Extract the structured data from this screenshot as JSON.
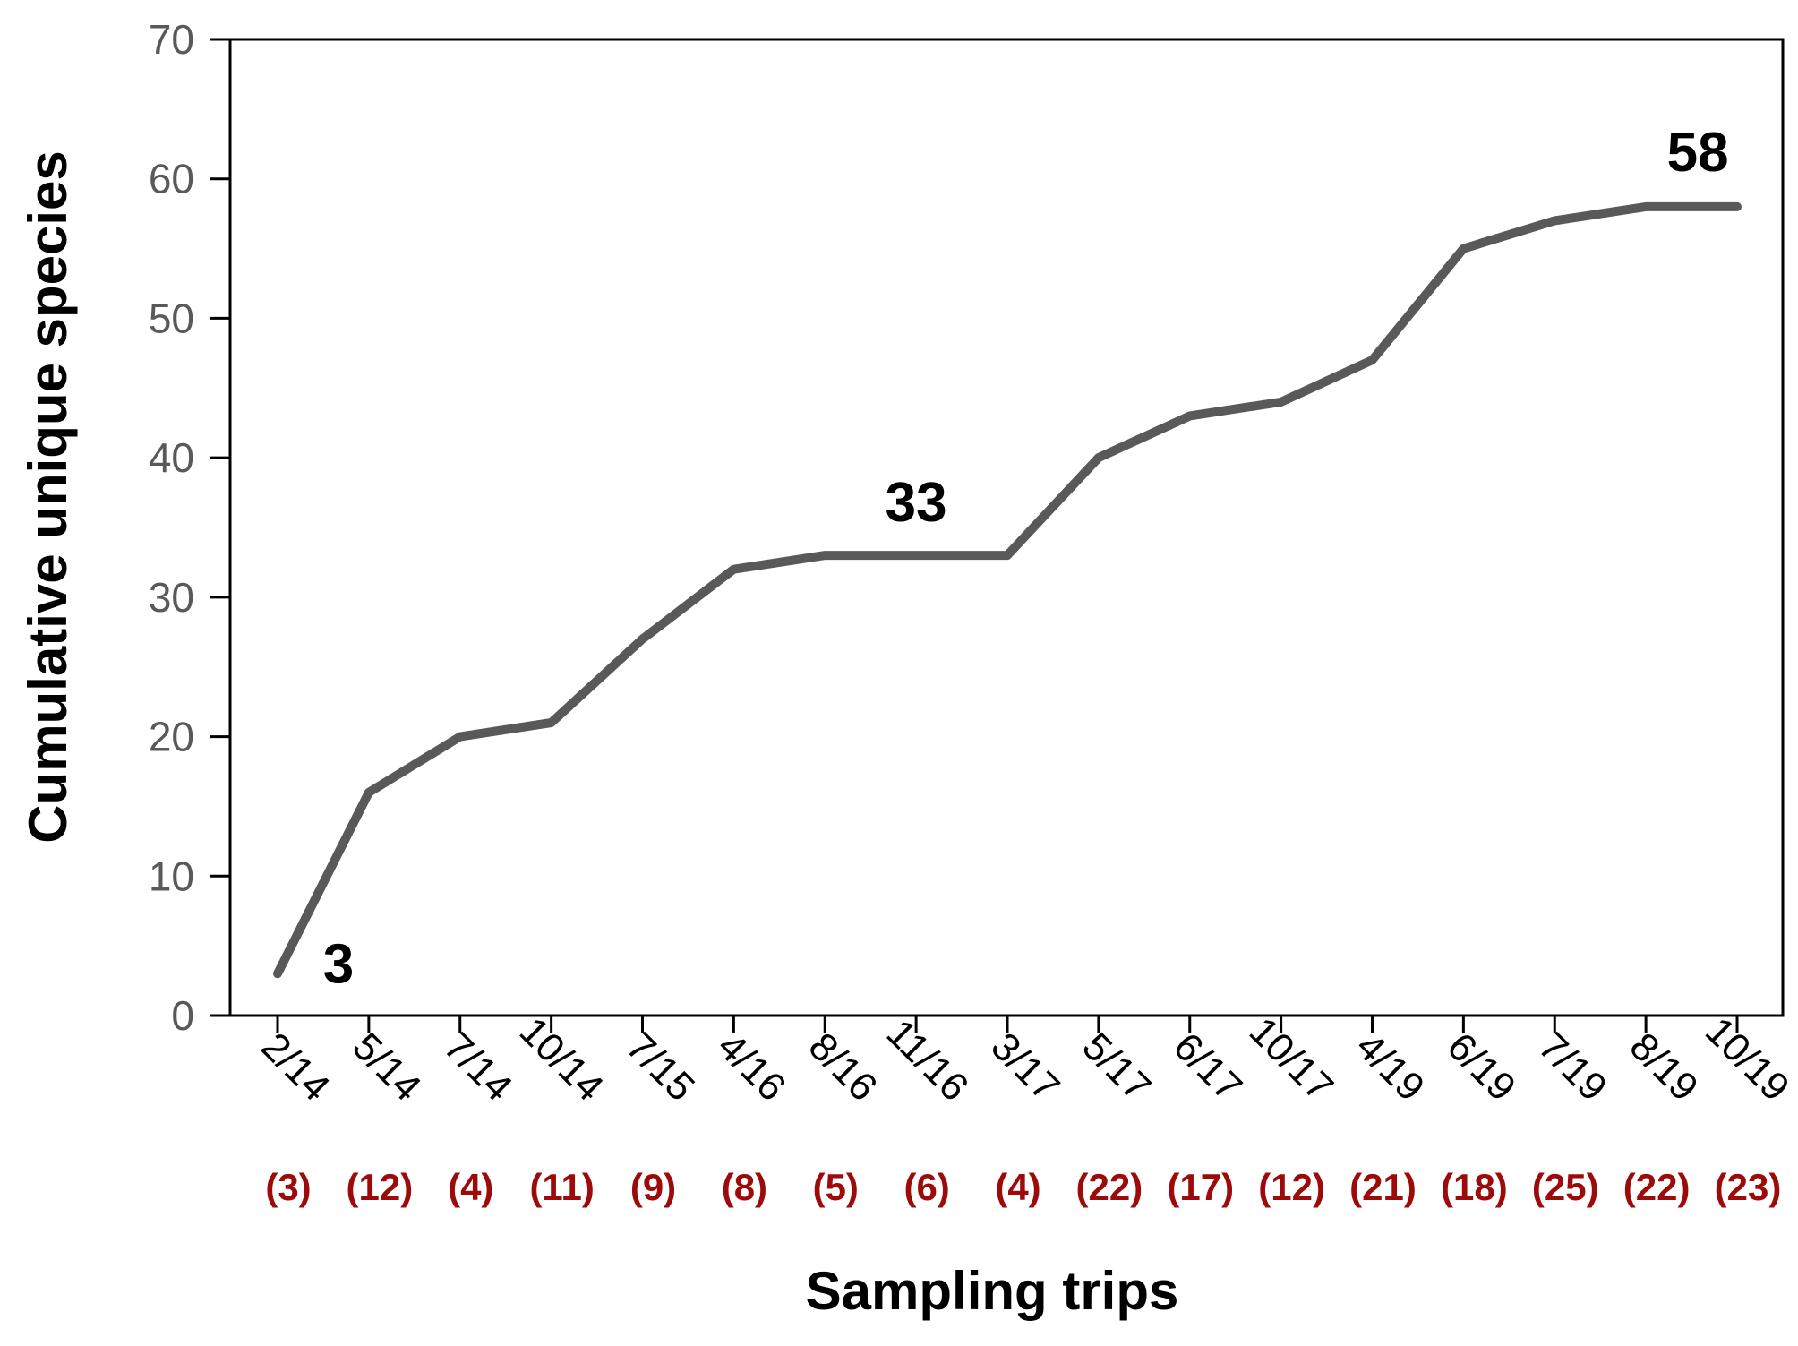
{
  "chart_data": {
    "type": "line",
    "xlabel": "Sampling trips",
    "ylabel": "Cumulative unique species",
    "ylim": [
      0,
      70
    ],
    "yticks": [
      0,
      10,
      20,
      30,
      40,
      50,
      60,
      70
    ],
    "grid": false,
    "legend": "none",
    "categories": [
      "2/14",
      "5/14",
      "7/14",
      "10/14",
      "7/15",
      "4/16",
      "8/16",
      "11/16",
      "3/17",
      "5/17",
      "6/17",
      "10/17",
      "4/19",
      "6/19",
      "7/19",
      "8/19",
      "10/19"
    ],
    "trip_counts": [
      "(3)",
      "(12)",
      "(4)",
      "(11)",
      "(9)",
      "(8)",
      "(5)",
      "(6)",
      "(4)",
      "(22)",
      "(17)",
      "(12)",
      "(21)",
      "(18)",
      "(25)",
      "(22)",
      "(23)"
    ],
    "series": [
      {
        "values": [
          3,
          16,
          20,
          21,
          27,
          32,
          33,
          33,
          33,
          40,
          43,
          44,
          47,
          55,
          57,
          58,
          58
        ]
      }
    ],
    "annotations": [
      {
        "index": 0,
        "text": "3"
      },
      {
        "index": 7,
        "text": "33"
      },
      {
        "index": 15,
        "text": "58"
      }
    ],
    "colors": {
      "line": "#595959",
      "axis": "#000000",
      "tick_labels": "#595959",
      "trip_counts": "#9c0a0a"
    }
  }
}
